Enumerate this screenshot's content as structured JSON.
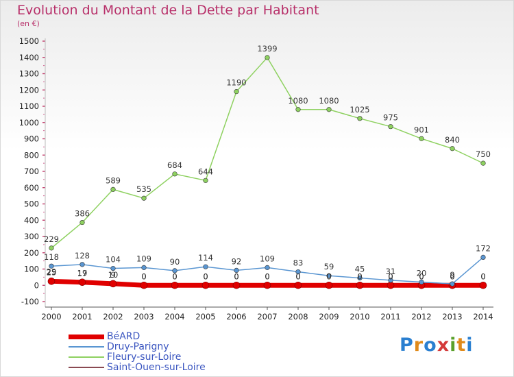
{
  "title": "Evolution du Montant de la Dette par Habitant",
  "subtitle": "(en €)",
  "logo": "Proxiti",
  "chart_data": {
    "type": "line",
    "x": [
      2000,
      2001,
      2002,
      2003,
      2004,
      2005,
      2006,
      2007,
      2008,
      2009,
      2010,
      2011,
      2012,
      2013,
      2014
    ],
    "ylim": [
      -100,
      1500
    ],
    "yticks": [
      -100,
      0,
      100,
      200,
      300,
      400,
      500,
      600,
      700,
      800,
      900,
      1000,
      1100,
      1200,
      1300,
      1400,
      1500
    ],
    "grid": false,
    "legend_position": "bottom-left",
    "series": [
      {
        "name": "Saint-Ouen-sur-Loire",
        "color": "#8a4a52",
        "values": [
          29,
          17,
          9,
          0,
          0,
          0,
          0,
          0,
          0,
          0,
          0,
          0,
          0,
          0,
          0
        ]
      },
      {
        "name": "BéARD",
        "color": "#e00000",
        "values": [
          25,
          19,
          10,
          0,
          0,
          0,
          0,
          0,
          0,
          0,
          0,
          0,
          0,
          0,
          0
        ]
      },
      {
        "name": "Druy-Parigny",
        "color": "#5a96d2",
        "values": [
          118,
          128,
          104,
          109,
          90,
          114,
          92,
          109,
          83,
          59,
          45,
          31,
          20,
          9,
          172
        ]
      },
      {
        "name": "Fleury-sur-Loire",
        "color": "#8ed160",
        "values": [
          229,
          386,
          589,
          535,
          684,
          644,
          1190,
          1399,
          1080,
          1080,
          1025,
          975,
          901,
          840,
          750
        ]
      }
    ]
  },
  "legend": [
    {
      "name": "BéARD",
      "color": "#e00000"
    },
    {
      "name": "Druy-Parigny",
      "color": "#5a96d2"
    },
    {
      "name": "Fleury-sur-Loire",
      "color": "#8ed160"
    },
    {
      "name": "Saint-Ouen-sur-Loire",
      "color": "#8a4a52"
    }
  ],
  "logo_colors": [
    "#2a7fd0",
    "#e08a1a",
    "#2a7fd0",
    "#d43a3a",
    "#5aa02a",
    "#e08a1a",
    "#2a7fd0"
  ]
}
